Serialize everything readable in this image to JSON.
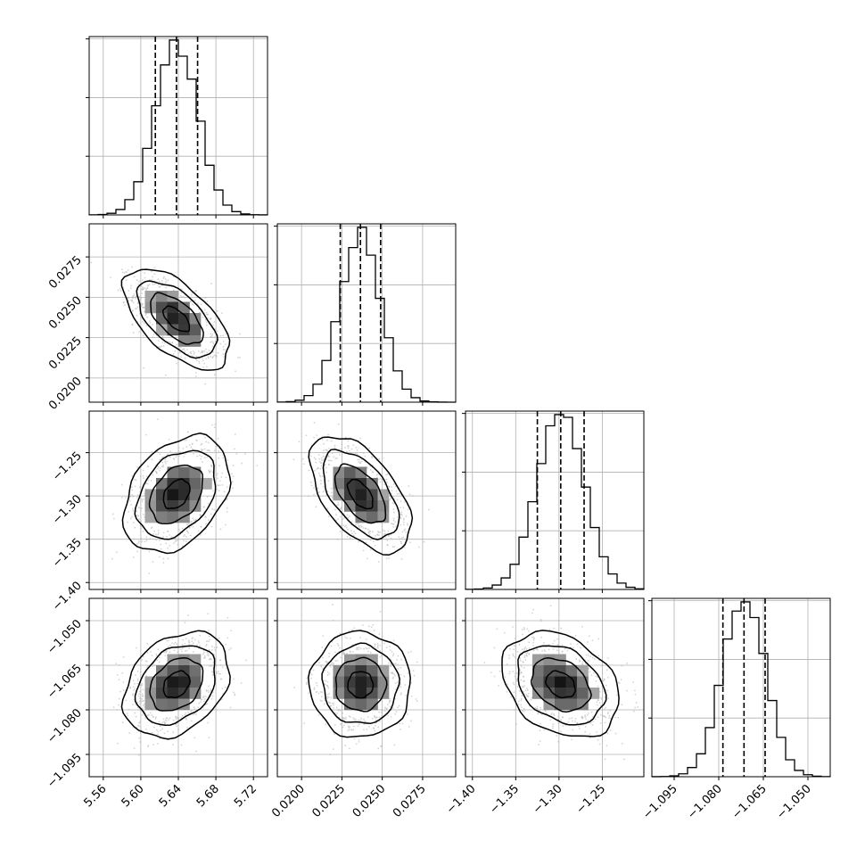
{
  "chart_data": {
    "type": "corner",
    "parameters": [
      "",
      "",
      "",
      ""
    ],
    "grid": true,
    "quantile_lines": [
      "dashed",
      "dashed",
      "dashed"
    ],
    "contour_color": "#000000",
    "sample_color": "#b8b8b8",
    "hist_color": "#000000",
    "axes": [
      {
        "range": [
          5.545,
          5.735
        ],
        "ticks": [
          5.56,
          5.6,
          5.64,
          5.68,
          5.72
        ],
        "tick_labels": [
          "5.56",
          "5.60",
          "5.64",
          "5.68",
          "5.72"
        ]
      },
      {
        "range": [
          0.0185,
          0.02955
        ],
        "ticks": [
          0.02,
          0.0225,
          0.025,
          0.0275
        ],
        "tick_labels": [
          "0.0200",
          "0.0225",
          "0.0250",
          "0.0275"
        ]
      },
      {
        "range": [
          -1.408,
          -1.202
        ],
        "ticks": [
          -1.4,
          -1.35,
          -1.3,
          -1.25
        ],
        "tick_labels": [
          "−1.40",
          "−1.35",
          "−1.30",
          "−1.25"
        ]
      },
      {
        "range": [
          -1.1025,
          -1.0425
        ],
        "ticks": [
          -1.095,
          -1.08,
          -1.065,
          -1.05
        ],
        "tick_labels": [
          "−1.095",
          "−1.080",
          "−1.065",
          "−1.050"
        ]
      }
    ],
    "marginals": [
      {
        "mean": 5.638,
        "sd": 0.0225,
        "quantiles": [
          5.6155,
          5.638,
          5.6605
        ]
      },
      {
        "mean": 0.02365,
        "sd": 0.00125,
        "quantiles": [
          0.0224,
          0.02365,
          0.0249
        ]
      },
      {
        "mean": -1.298,
        "sd": 0.027,
        "quantiles": [
          -1.325,
          -1.298,
          -1.271
        ]
      },
      {
        "mean": -1.0715,
        "sd": 0.0071,
        "quantiles": [
          -1.0786,
          -1.0715,
          -1.0644
        ]
      }
    ],
    "correlations": [
      {
        "pair": [
          0,
          1
        ],
        "rho": -0.6
      },
      {
        "pair": [
          0,
          2
        ],
        "rho": 0.35
      },
      {
        "pair": [
          1,
          2
        ],
        "rho": -0.55
      },
      {
        "pair": [
          0,
          3
        ],
        "rho": 0.3
      },
      {
        "pair": [
          1,
          3
        ],
        "rho": 0.0
      },
      {
        "pair": [
          2,
          3
        ],
        "rho": -0.3
      }
    ],
    "contour_levels_sigma": [
      0.5,
      1.0,
      1.5,
      2.0
    ]
  }
}
